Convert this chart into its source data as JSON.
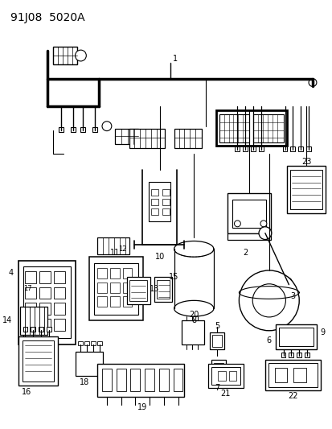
{
  "title": "91J08  5020A",
  "bg": "#ffffff",
  "fg": "#000000",
  "fig_w": 4.14,
  "fig_h": 5.33,
  "dpi": 100
}
